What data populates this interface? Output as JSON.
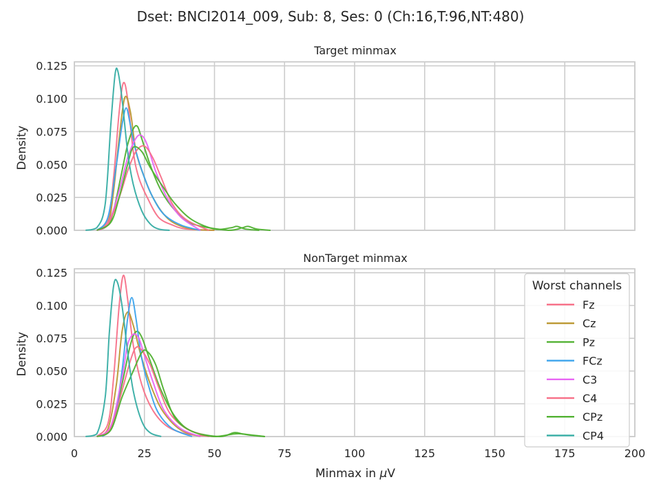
{
  "figure": {
    "title": "Dset: BNCI2014_009, Sub: 8, Ses: 0 (Ch:16,T:96,NT:480)",
    "xlabel_prefix": "Minmax in ",
    "xlabel_mu": "μ",
    "xlabel_suffix": "V"
  },
  "legend": {
    "title": "Worst channels",
    "placement": "upper-right of bottom panel"
  },
  "chart_data": [
    {
      "type": "line",
      "kind": "kde-density",
      "title": "Target minmax",
      "xlabel": "",
      "ylabel": "Density",
      "xlim": [
        0,
        200
      ],
      "ylim": [
        0,
        0.128
      ],
      "xticks": [
        "0",
        "25",
        "50",
        "75",
        "100",
        "125",
        "150",
        "175",
        "200"
      ],
      "yticks": [
        "0.000",
        "0.025",
        "0.050",
        "0.075",
        "0.100",
        "0.125"
      ],
      "grid": true,
      "series": [
        {
          "name": "Fz",
          "color": "#f77189",
          "x": [
            8,
            12,
            14,
            16,
            17.5,
            19,
            21,
            23,
            26,
            30,
            35,
            40,
            50
          ],
          "y": [
            0,
            0.008,
            0.04,
            0.09,
            0.112,
            0.1,
            0.06,
            0.04,
            0.025,
            0.01,
            0.004,
            0.001,
            0
          ]
        },
        {
          "name": "Cz",
          "color": "#bb9832",
          "x": [
            8,
            12,
            14,
            16,
            18,
            20,
            22,
            25,
            28,
            32,
            36,
            42,
            50
          ],
          "y": [
            0,
            0.005,
            0.03,
            0.07,
            0.101,
            0.09,
            0.06,
            0.04,
            0.025,
            0.012,
            0.005,
            0.001,
            0
          ]
        },
        {
          "name": "Pz",
          "color": "#50b131",
          "x": [
            8,
            12,
            14,
            17,
            19,
            21,
            22.5,
            24,
            27,
            31,
            36,
            42,
            55,
            60,
            62,
            65,
            70
          ],
          "y": [
            0,
            0.004,
            0.015,
            0.045,
            0.065,
            0.077,
            0.079,
            0.07,
            0.05,
            0.03,
            0.015,
            0.005,
            0,
            0.002,
            0.003,
            0.001,
            0
          ]
        },
        {
          "name": "FCz",
          "color": "#3ba3ec",
          "x": [
            8,
            12,
            15,
            17,
            18.5,
            20,
            22,
            25,
            28,
            32,
            38,
            45
          ],
          "y": [
            0,
            0.01,
            0.05,
            0.08,
            0.093,
            0.08,
            0.06,
            0.04,
            0.025,
            0.012,
            0.004,
            0
          ]
        },
        {
          "name": "C3",
          "color": "#e866f4",
          "x": [
            8,
            12,
            16,
            19,
            22,
            24,
            26,
            29,
            33,
            38,
            45
          ],
          "y": [
            0,
            0.005,
            0.03,
            0.055,
            0.07,
            0.072,
            0.065,
            0.045,
            0.025,
            0.01,
            0
          ]
        },
        {
          "name": "C4",
          "color": "#f77189",
          "x": [
            8,
            12,
            16,
            19,
            22,
            25,
            28,
            31,
            35,
            40,
            48
          ],
          "y": [
            0,
            0.005,
            0.025,
            0.045,
            0.06,
            0.064,
            0.055,
            0.04,
            0.02,
            0.008,
            0
          ]
        },
        {
          "name": "CPz",
          "color": "#50b131",
          "x": [
            8,
            13,
            16,
            19,
            21,
            24,
            27,
            31,
            36,
            42,
            50,
            56,
            58,
            61,
            66
          ],
          "y": [
            0,
            0.006,
            0.025,
            0.05,
            0.063,
            0.06,
            0.048,
            0.035,
            0.02,
            0.008,
            0.001,
            0.002,
            0.003,
            0.001,
            0
          ]
        },
        {
          "name": "CP4",
          "color": "#36ada4",
          "x": [
            4,
            8,
            11,
            13,
            14.5,
            15.5,
            17,
            19,
            21,
            24,
            27,
            30,
            34
          ],
          "y": [
            0,
            0.002,
            0.02,
            0.08,
            0.118,
            0.121,
            0.1,
            0.06,
            0.035,
            0.015,
            0.005,
            0.001,
            0
          ]
        }
      ]
    },
    {
      "type": "line",
      "kind": "kde-density",
      "title": "NonTarget minmax",
      "xlabel": "Minmax in μV",
      "ylabel": "Density",
      "xlim": [
        0,
        200
      ],
      "ylim": [
        0,
        0.128
      ],
      "xticks": [
        "0",
        "25",
        "50",
        "75",
        "100",
        "125",
        "150",
        "175",
        "200"
      ],
      "yticks": [
        "0.000",
        "0.025",
        "0.050",
        "0.075",
        "0.100",
        "0.125"
      ],
      "grid": true,
      "series": [
        {
          "name": "Fz",
          "color": "#f77189",
          "x": [
            8,
            12,
            14,
            16,
            17.5,
            19,
            21,
            24,
            28,
            33,
            40,
            50
          ],
          "y": [
            0,
            0.01,
            0.045,
            0.1,
            0.123,
            0.105,
            0.07,
            0.04,
            0.02,
            0.008,
            0.002,
            0
          ]
        },
        {
          "name": "Cz",
          "color": "#bb9832",
          "x": [
            8,
            12,
            15,
            17,
            19,
            21,
            24,
            28,
            32,
            38,
            45
          ],
          "y": [
            0,
            0.006,
            0.04,
            0.08,
            0.095,
            0.085,
            0.06,
            0.035,
            0.018,
            0.005,
            0
          ]
        },
        {
          "name": "Pz",
          "color": "#50b131",
          "x": [
            8,
            13,
            17,
            20,
            22,
            24,
            27,
            31,
            36,
            42,
            52,
            57,
            60,
            63,
            68
          ],
          "y": [
            0,
            0.006,
            0.04,
            0.07,
            0.08,
            0.076,
            0.058,
            0.035,
            0.015,
            0.004,
            0,
            0.003,
            0.002,
            0.001,
            0
          ]
        },
        {
          "name": "FCz",
          "color": "#3ba3ec",
          "x": [
            10,
            14,
            17,
            19,
            20.5,
            22,
            24,
            27,
            30,
            35,
            42
          ],
          "y": [
            0,
            0.01,
            0.05,
            0.09,
            0.106,
            0.09,
            0.06,
            0.035,
            0.018,
            0.006,
            0
          ]
        },
        {
          "name": "C3",
          "color": "#e866f4",
          "x": [
            8,
            13,
            17,
            19,
            21,
            23,
            25,
            28,
            32,
            38,
            45
          ],
          "y": [
            0,
            0.008,
            0.045,
            0.07,
            0.078,
            0.075,
            0.062,
            0.042,
            0.02,
            0.006,
            0
          ]
        },
        {
          "name": "C4",
          "color": "#f77189",
          "x": [
            8,
            13,
            17,
            20,
            22,
            24,
            27,
            30,
            34,
            40,
            48
          ],
          "y": [
            0,
            0.006,
            0.035,
            0.058,
            0.068,
            0.066,
            0.055,
            0.038,
            0.018,
            0.006,
            0
          ]
        },
        {
          "name": "CPz",
          "color": "#50b131",
          "x": [
            8,
            13,
            17,
            21,
            24,
            26,
            29,
            32,
            36,
            42,
            50,
            57,
            60,
            64,
            68
          ],
          "y": [
            0,
            0.005,
            0.03,
            0.05,
            0.064,
            0.065,
            0.055,
            0.035,
            0.014,
            0.004,
            0,
            0.002,
            0.002,
            0.001,
            0
          ]
        },
        {
          "name": "CP4",
          "color": "#36ada4",
          "x": [
            4,
            8,
            11,
            12.5,
            14,
            15.3,
            17,
            19,
            21,
            24,
            27,
            31
          ],
          "y": [
            0,
            0.002,
            0.03,
            0.08,
            0.115,
            0.118,
            0.1,
            0.065,
            0.035,
            0.012,
            0.003,
            0
          ]
        }
      ]
    }
  ]
}
